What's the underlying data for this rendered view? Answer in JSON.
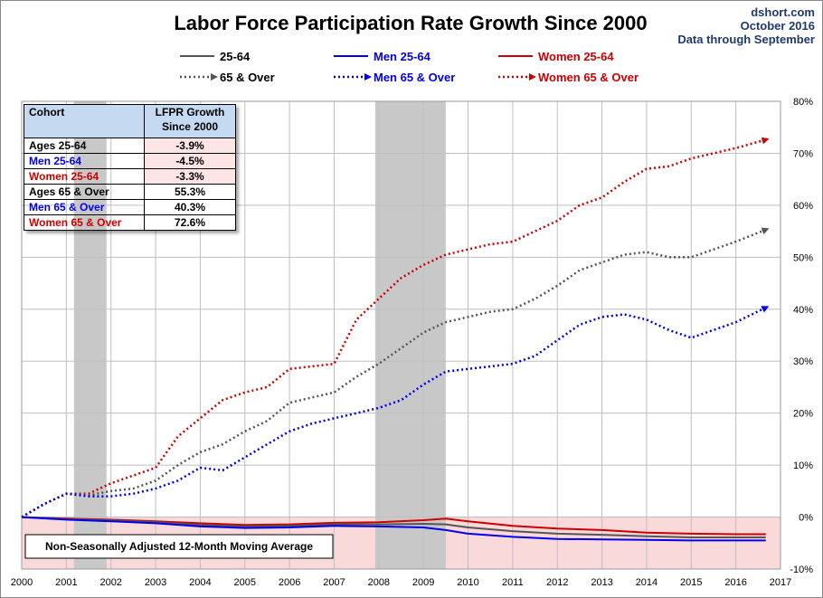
{
  "source": {
    "site": "dshort.com",
    "date": "October 2016",
    "through": "Data through  September"
  },
  "colors": {
    "all": "#555555",
    "men": "#0000ee",
    "women": "#cc0000",
    "recession": "#c8c8c8",
    "negative_band": "#f9d9d9"
  },
  "legend": [
    {
      "name": "25-64",
      "style": "solid",
      "color": "#555555"
    },
    {
      "name": "Men 25-64",
      "style": "solid",
      "color": "#0000ee"
    },
    {
      "name": "Women 25-64",
      "style": "solid",
      "color": "#cc0000"
    },
    {
      "name": "65 & Over",
      "style": "dotted",
      "color": "#555555"
    },
    {
      "name": "Men 65 & Over",
      "style": "dotted",
      "color": "#0000ee"
    },
    {
      "name": "Women 65 & Over",
      "style": "dotted",
      "color": "#cc0000"
    }
  ],
  "table": {
    "headers": [
      "Cohort",
      "LFPR Growth Since 2000"
    ],
    "rows": [
      {
        "cohort": "Ages 25-64",
        "value": "-3.9%",
        "color": "#000000"
      },
      {
        "cohort": "Men 25-64",
        "value": "-4.5%",
        "color": "#0000ee"
      },
      {
        "cohort": "Women 25-64",
        "value": "-3.3%",
        "color": "#cc0000"
      },
      {
        "cohort": "Ages 65 & Over",
        "value": "55.3%",
        "color": "#000000"
      },
      {
        "cohort": "Men 65 & Over",
        "value": "40.3%",
        "color": "#0000ee"
      },
      {
        "cohort": "Women 65 & Over",
        "value": "72.6%",
        "color": "#cc0000"
      }
    ]
  },
  "note": "Non-Seasonally Adjusted 12-Month Moving Average",
  "chart_data": {
    "type": "line",
    "title": "Labor Force Participation Rate Growth Since 2000",
    "xlabel": "",
    "ylabel": "",
    "xlim": [
      2000,
      2017
    ],
    "ylim": [
      -10,
      80
    ],
    "x_ticks": [
      2000,
      2001,
      2002,
      2003,
      2004,
      2005,
      2006,
      2007,
      2008,
      2009,
      2010,
      2011,
      2012,
      2013,
      2014,
      2015,
      2016,
      2017
    ],
    "y_ticks": [
      -10,
      0,
      10,
      20,
      30,
      40,
      50,
      60,
      70,
      80
    ],
    "y_tick_labels": [
      "-10%",
      "0%",
      "10%",
      "20%",
      "30%",
      "40%",
      "50%",
      "60%",
      "70%",
      "80%"
    ],
    "recessions": [
      [
        2001.17,
        2001.9
      ],
      [
        2007.92,
        2009.5
      ]
    ],
    "negative_shading": [
      -10,
      0
    ],
    "grid": true,
    "series": [
      {
        "name": "Women 65 & Over",
        "style": "dotted",
        "color": "#cc0000",
        "arrow": true,
        "x": [
          2000,
          2000.5,
          2001,
          2001.5,
          2002,
          2002.5,
          2003,
          2003.5,
          2004,
          2004.5,
          2005,
          2005.5,
          2006,
          2006.5,
          2007,
          2007.5,
          2008,
          2008.5,
          2009,
          2009.5,
          2010,
          2010.5,
          2011,
          2011.5,
          2012,
          2012.5,
          2013,
          2013.5,
          2014,
          2014.5,
          2015,
          2015.5,
          2016,
          2016.67
        ],
        "y": [
          0,
          2.5,
          4.5,
          4.5,
          6.5,
          8,
          9.5,
          15.5,
          19,
          22.5,
          24,
          25,
          28.5,
          29,
          29.5,
          38,
          42,
          46,
          48.5,
          50.5,
          51.5,
          52.5,
          53,
          55,
          57,
          60,
          61.5,
          64.5,
          67,
          67.5,
          69,
          70,
          71,
          72.6
        ]
      },
      {
        "name": "65 & Over",
        "style": "dotted",
        "color": "#555555",
        "arrow": true,
        "x": [
          2000,
          2000.5,
          2001,
          2001.5,
          2002,
          2002.5,
          2003,
          2003.5,
          2004,
          2004.5,
          2005,
          2005.5,
          2006,
          2006.5,
          2007,
          2007.5,
          2008,
          2008.5,
          2009,
          2009.5,
          2010,
          2010.5,
          2011,
          2011.5,
          2012,
          2012.5,
          2013,
          2013.5,
          2014,
          2014.5,
          2015,
          2015.5,
          2016,
          2016.67
        ],
        "y": [
          0,
          2.5,
          4.5,
          4.2,
          5,
          5.5,
          7,
          10,
          12.5,
          14,
          16.5,
          18.5,
          22,
          23,
          24,
          27,
          29.5,
          32.5,
          35.5,
          37.5,
          38.5,
          39.5,
          40,
          42,
          44.5,
          47.5,
          49,
          50.5,
          51,
          50,
          50,
          51.5,
          53,
          55.3
        ]
      },
      {
        "name": "Men 65 & Over",
        "style": "dotted",
        "color": "#0000ee",
        "arrow": true,
        "x": [
          2000,
          2000.5,
          2001,
          2001.5,
          2002,
          2002.5,
          2003,
          2003.5,
          2004,
          2004.5,
          2005,
          2005.5,
          2006,
          2006.5,
          2007,
          2007.5,
          2008,
          2008.5,
          2009,
          2009.5,
          2010,
          2010.5,
          2011,
          2011.5,
          2012,
          2012.5,
          2013,
          2013.5,
          2014,
          2014.5,
          2015,
          2015.5,
          2016,
          2016.67
        ],
        "y": [
          0,
          2.5,
          4.5,
          4,
          4,
          4.5,
          5.5,
          7,
          9.5,
          9,
          11.5,
          14,
          16.5,
          18,
          19,
          20,
          21,
          22.5,
          25.5,
          28,
          28.5,
          29,
          29.5,
          31,
          34,
          37,
          38.5,
          39,
          38,
          36,
          34.5,
          36,
          37.5,
          40.3
        ]
      },
      {
        "name": "Women 25-64",
        "style": "solid",
        "color": "#cc0000",
        "arrow": false,
        "x": [
          2000,
          2001,
          2002,
          2003,
          2004,
          2005,
          2006,
          2007,
          2008,
          2009,
          2009.5,
          2010,
          2011,
          2012,
          2013,
          2014,
          2015,
          2016,
          2016.67
        ],
        "y": [
          0,
          -0.3,
          -0.5,
          -0.8,
          -1.2,
          -1.5,
          -1.4,
          -1.1,
          -1.0,
          -0.6,
          -0.3,
          -0.8,
          -1.7,
          -2.2,
          -2.5,
          -3.0,
          -3.2,
          -3.3,
          -3.3
        ]
      },
      {
        "name": "25-64",
        "style": "solid",
        "color": "#555555",
        "arrow": false,
        "x": [
          2000,
          2001,
          2002,
          2003,
          2004,
          2005,
          2006,
          2007,
          2008,
          2009,
          2009.5,
          2010,
          2011,
          2012,
          2013,
          2014,
          2015,
          2016,
          2016.67
        ],
        "y": [
          0,
          -0.4,
          -0.6,
          -1.0,
          -1.5,
          -1.8,
          -1.7,
          -1.4,
          -1.4,
          -1.3,
          -1.4,
          -2.0,
          -2.7,
          -3.2,
          -3.4,
          -3.7,
          -3.9,
          -3.9,
          -3.9
        ]
      },
      {
        "name": "Men 25-64",
        "style": "solid",
        "color": "#0000ee",
        "arrow": false,
        "x": [
          2000,
          2001,
          2002,
          2003,
          2004,
          2005,
          2006,
          2007,
          2008,
          2009,
          2009.5,
          2010,
          2011,
          2012,
          2013,
          2014,
          2015,
          2016,
          2016.67
        ],
        "y": [
          0,
          -0.5,
          -0.8,
          -1.2,
          -1.8,
          -2.1,
          -2.0,
          -1.7,
          -1.8,
          -2.0,
          -2.5,
          -3.2,
          -3.8,
          -4.2,
          -4.3,
          -4.4,
          -4.5,
          -4.5,
          -4.5
        ]
      }
    ]
  }
}
